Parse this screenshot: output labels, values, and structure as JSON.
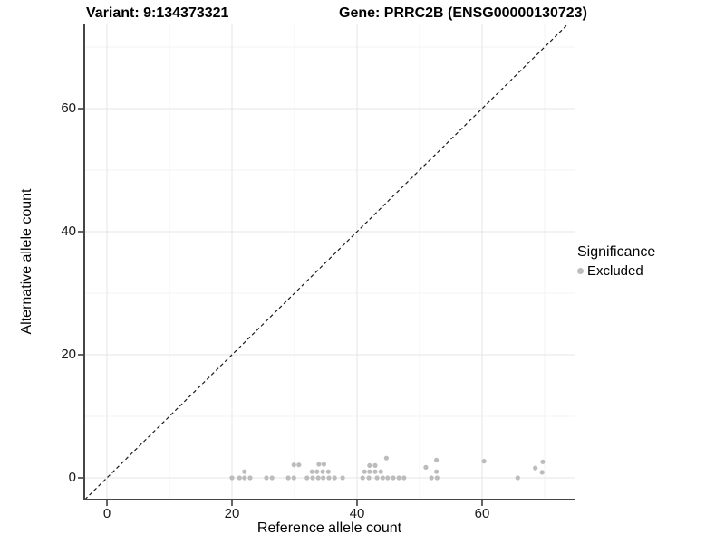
{
  "titles": {
    "variant": "Variant: 9:134373321",
    "gene": "Gene: PRRC2B (ENSG00000130723)"
  },
  "legend": {
    "title": "Significance",
    "items": [
      {
        "label": "Excluded",
        "color": "#bcbcbc"
      }
    ]
  },
  "colors": {
    "background": "#ffffff",
    "grid_major": "#e6e6e6",
    "grid_minor": "#f3f3f3",
    "axis_line": "#454545",
    "tick_mark": "#333333",
    "reference_line": "#1a1a1a",
    "point": "#bcbcbc",
    "text": "#000000"
  },
  "chart_data": {
    "type": "scatter",
    "title_left": "Variant: 9:134373321",
    "title_right": "Gene: PRRC2B (ENSG00000130723)",
    "xlabel": "Reference allele count",
    "ylabel": "Alternative allele count",
    "x_ticks": [
      0,
      20,
      40,
      60
    ],
    "y_ticks": [
      0,
      20,
      40,
      60
    ],
    "x_minor_ticks": [
      10,
      30,
      50,
      70
    ],
    "y_minor_ticks": [
      10,
      30,
      50,
      70
    ],
    "xlim": [
      -3.6,
      74.8
    ],
    "ylim": [
      -3.5,
      73.7
    ],
    "grid": "major+minor",
    "legend_position": "right",
    "reference_line": {
      "slope": 1,
      "intercept": 0,
      "style": "dashed"
    },
    "point_radius": 2.6,
    "series": [
      {
        "name": "Excluded",
        "color": "#bcbcbc",
        "points": [
          [
            20,
            0
          ],
          [
            21.2,
            0
          ],
          [
            22,
            0
          ],
          [
            22.9,
            0
          ],
          [
            25.5,
            0
          ],
          [
            26.4,
            0
          ],
          [
            29,
            0
          ],
          [
            29.9,
            0
          ],
          [
            32,
            0
          ],
          [
            32.9,
            0
          ],
          [
            33.8,
            0
          ],
          [
            34.6,
            0
          ],
          [
            35.5,
            0
          ],
          [
            36.4,
            0
          ],
          [
            37.7,
            0
          ],
          [
            40.9,
            0
          ],
          [
            41.9,
            0
          ],
          [
            43.2,
            0
          ],
          [
            44.1,
            0
          ],
          [
            44.9,
            0
          ],
          [
            45.8,
            0
          ],
          [
            46.7,
            0
          ],
          [
            47.5,
            0
          ],
          [
            51.9,
            0
          ],
          [
            52.8,
            0
          ],
          [
            65.7,
            0
          ],
          [
            22,
            1
          ],
          [
            32.8,
            1
          ],
          [
            33.6,
            1
          ],
          [
            34.5,
            1
          ],
          [
            35.4,
            1
          ],
          [
            41.2,
            1
          ],
          [
            42,
            1
          ],
          [
            42.9,
            1
          ],
          [
            43.8,
            1
          ],
          [
            52.7,
            1
          ],
          [
            69.6,
            0.9
          ],
          [
            51,
            1.7
          ],
          [
            68.5,
            1.6
          ],
          [
            29.9,
            2.1
          ],
          [
            30.7,
            2.1
          ],
          [
            33.9,
            2.2
          ],
          [
            34.7,
            2.2
          ],
          [
            42,
            2
          ],
          [
            42.9,
            2
          ],
          [
            60.3,
            2.7
          ],
          [
            69.7,
            2.6
          ],
          [
            44.7,
            3.2
          ],
          [
            52.7,
            2.9
          ]
        ]
      }
    ]
  }
}
